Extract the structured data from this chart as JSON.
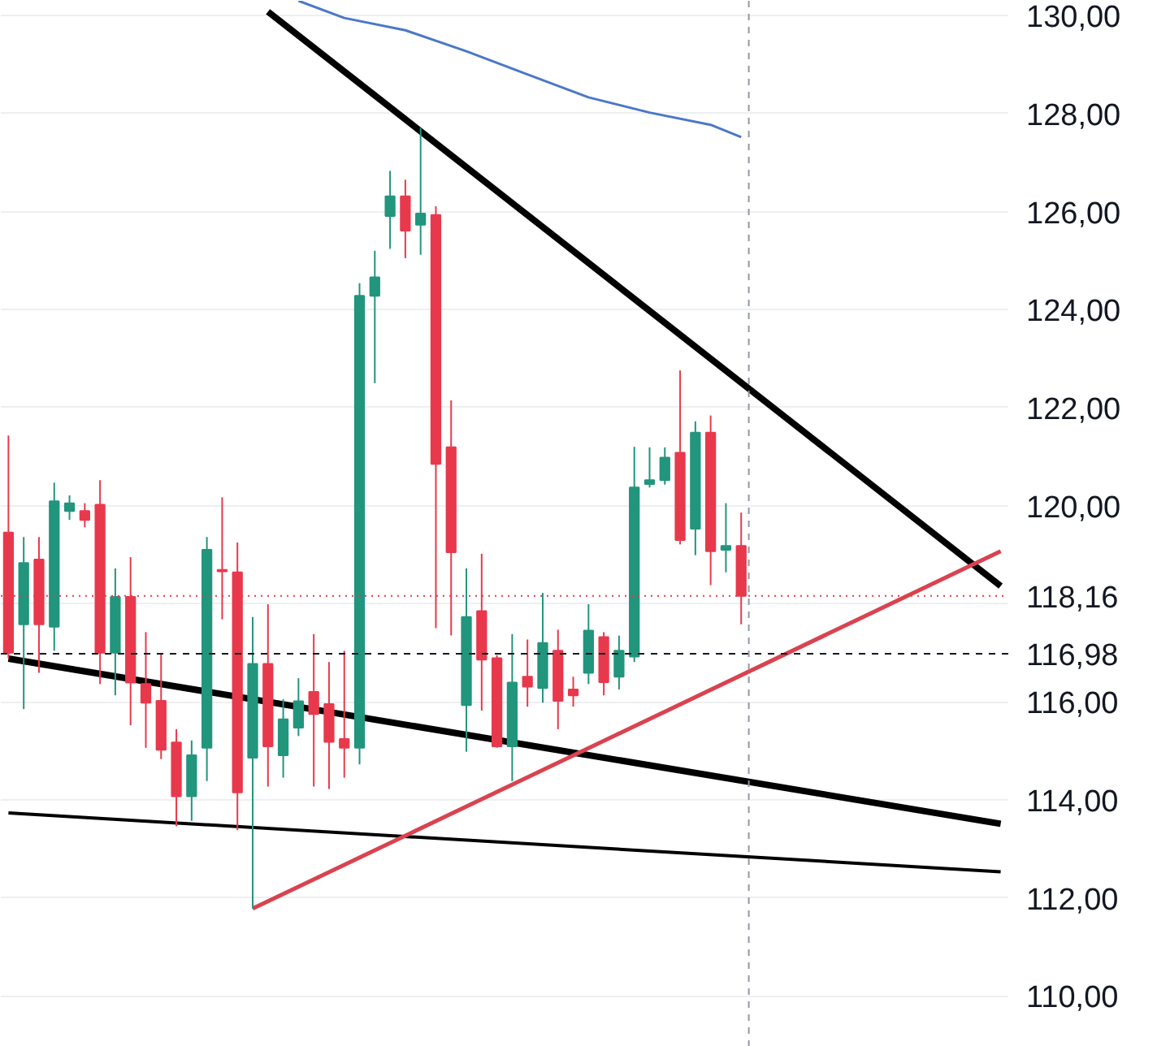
{
  "chart_data": {
    "type": "candlestick",
    "categories": [
      null,
      null,
      null,
      null,
      null,
      null,
      null,
      null,
      null,
      null,
      null,
      null,
      null,
      null,
      null,
      null,
      null,
      null,
      null,
      null,
      null,
      null,
      null,
      null,
      null,
      null,
      null,
      null,
      null,
      null,
      null,
      null,
      null,
      null,
      null,
      null,
      null,
      null,
      null,
      null,
      null,
      null,
      null,
      null,
      null,
      null,
      null,
      null,
      null,
      null,
      null,
      null,
      null,
      null,
      null,
      null,
      null,
      null,
      null,
      null,
      null,
      null,
      null,
      null,
      null,
      null
    ],
    "ohlc": [
      [
        119.45,
        121.43,
        116.89,
        117.0
      ],
      [
        117.58,
        119.36,
        115.85,
        118.83
      ],
      [
        118.9,
        119.36,
        116.59,
        117.58
      ],
      [
        117.53,
        120.47,
        117.04,
        120.09
      ],
      [
        119.89,
        120.21,
        119.71,
        120.05
      ],
      [
        119.89,
        120.05,
        119.56,
        119.71
      ],
      [
        120.02,
        120.52,
        116.36,
        117.0
      ],
      [
        117.0,
        118.72,
        116.13,
        118.14
      ],
      [
        118.14,
        118.95,
        115.52,
        116.39
      ],
      [
        116.36,
        117.42,
        115.06,
        115.98
      ],
      [
        116.02,
        116.97,
        114.83,
        115.02
      ],
      [
        115.17,
        115.44,
        113.46,
        114.07
      ],
      [
        114.07,
        115.21,
        113.57,
        114.91
      ],
      [
        115.06,
        119.36,
        114.38,
        119.1
      ],
      [
        118.69,
        120.17,
        117.68,
        118.66
      ],
      [
        118.64,
        119.25,
        113.38,
        114.15
      ],
      [
        114.86,
        117.73,
        111.78,
        116.77
      ],
      [
        116.77,
        117.99,
        114.27,
        115.09
      ],
      [
        114.91,
        116.05,
        114.45,
        115.64
      ],
      [
        115.47,
        116.48,
        115.3,
        116.01
      ],
      [
        116.2,
        117.38,
        114.27,
        115.75
      ],
      [
        115.95,
        116.81,
        114.22,
        115.18
      ],
      [
        115.24,
        117.04,
        114.45,
        115.06
      ],
      [
        115.06,
        124.54,
        114.72,
        124.28
      ],
      [
        124.28,
        125.2,
        122.5,
        124.66
      ],
      [
        125.91,
        126.83,
        125.24,
        126.31
      ],
      [
        126.31,
        126.65,
        125.05,
        125.61
      ],
      [
        125.73,
        127.71,
        125.12,
        125.96
      ],
      [
        125.93,
        126.11,
        117.5,
        120.85
      ],
      [
        121.19,
        122.15,
        117.35,
        119.05
      ],
      [
        115.93,
        118.72,
        114.98,
        117.73
      ],
      [
        117.85,
        119.02,
        115.82,
        116.86
      ],
      [
        116.89,
        116.95,
        115.06,
        115.09
      ],
      [
        115.09,
        117.38,
        114.38,
        116.39
      ],
      [
        116.51,
        117.27,
        115.9,
        116.31
      ],
      [
        116.28,
        118.22,
        115.98,
        117.2
      ],
      [
        117.04,
        117.47,
        115.44,
        116.02
      ],
      [
        116.25,
        116.51,
        115.9,
        116.13
      ],
      [
        116.59,
        117.99,
        116.36,
        117.45
      ],
      [
        117.32,
        117.42,
        116.13,
        116.4
      ],
      [
        116.51,
        117.35,
        116.25,
        117.04
      ],
      [
        116.92,
        121.2,
        116.81,
        120.37
      ],
      [
        120.44,
        121.19,
        120.37,
        120.52
      ],
      [
        120.52,
        121.19,
        120.43,
        120.98
      ],
      [
        121.08,
        122.76,
        119.21,
        119.3
      ],
      [
        119.53,
        121.72,
        118.99,
        121.49
      ],
      [
        121.49,
        121.84,
        118.38,
        119.07
      ],
      [
        119.1,
        120.05,
        118.64,
        119.18
      ],
      [
        119.18,
        119.86,
        117.58,
        118.16
      ],
      null,
      null,
      null,
      null,
      null,
      null,
      null,
      null,
      null,
      null,
      null,
      null,
      null,
      null,
      null,
      null,
      null
    ],
    "colors": [
      "#e8394c",
      "#22957d",
      "#e8394c",
      "#22957d",
      "#22957d",
      "#e8394c",
      "#e8394c",
      "#22957d",
      "#e8394c",
      "#e8394c",
      "#e8394c",
      "#e8394c",
      "#22957d",
      "#22957d",
      "#e8394c",
      "#e8394c",
      "#22957d",
      "#e8394c",
      "#22957d",
      "#22957d",
      "#e8394c",
      "#e8394c",
      "#e8394c",
      "#22957d",
      "#22957d",
      "#22957d",
      "#e8394c",
      "#22957d",
      "#e8394c",
      "#e8394c",
      "#22957d",
      "#e8394c",
      "#e8394c",
      "#22957d",
      "#e8394c",
      "#22957d",
      "#e8394c",
      "#e8394c",
      "#22957d",
      "#e8394c",
      "#22957d",
      "#22957d",
      "#22957d",
      "#22957d",
      "#e8394c",
      "#22957d",
      "#e8394c",
      "#22957d",
      "#e8394c",
      null,
      null,
      null,
      null,
      null,
      null,
      null,
      null,
      null,
      null,
      null,
      null,
      null,
      null,
      null,
      null,
      null
    ],
    "series": [
      {
        "type": "line",
        "color": "#000000",
        "values": [
          null,
          null,
          null,
          null,
          null,
          null,
          null,
          null,
          null,
          null,
          null,
          null,
          null,
          null,
          null,
          null,
          null,
          130.08,
          null,
          null,
          null,
          null,
          null,
          null,
          null,
          null,
          null,
          null,
          null,
          null,
          null,
          null,
          null,
          null,
          null,
          null,
          null,
          null,
          null,
          null,
          null,
          null,
          null,
          null,
          null,
          null,
          null,
          null,
          null,
          null,
          null,
          null,
          null,
          null,
          null,
          null,
          null,
          null,
          null,
          null,
          null,
          null,
          null,
          null,
          null,
          118.36
        ]
      },
      {
        "type": "line",
        "color": "#000000",
        "values": [
          116.88,
          null,
          null,
          null,
          null,
          null,
          null,
          null,
          null,
          null,
          null,
          null,
          null,
          null,
          null,
          null,
          null,
          null,
          null,
          null,
          null,
          null,
          null,
          null,
          null,
          null,
          null,
          null,
          null,
          null,
          null,
          null,
          null,
          null,
          null,
          null,
          null,
          null,
          null,
          null,
          null,
          null,
          null,
          null,
          null,
          null,
          null,
          null,
          null,
          null,
          null,
          null,
          null,
          null,
          null,
          null,
          null,
          null,
          null,
          null,
          null,
          null,
          null,
          null,
          null,
          113.51
        ]
      },
      {
        "type": "line",
        "color": "#000000",
        "values": [
          113.73,
          null,
          null,
          null,
          null,
          null,
          null,
          null,
          null,
          null,
          null,
          null,
          null,
          null,
          null,
          null,
          null,
          null,
          null,
          null,
          null,
          null,
          null,
          null,
          null,
          null,
          null,
          null,
          null,
          null,
          null,
          null,
          null,
          null,
          null,
          null,
          null,
          null,
          null,
          null,
          null,
          null,
          null,
          null,
          null,
          null,
          null,
          null,
          null,
          null,
          null,
          null,
          null,
          null,
          null,
          null,
          null,
          null,
          null,
          null,
          null,
          null,
          null,
          null,
          null,
          112.53
        ]
      },
      {
        "type": "line",
        "color": "#d9434f",
        "values": [
          null,
          null,
          null,
          null,
          null,
          null,
          null,
          null,
          null,
          null,
          null,
          null,
          null,
          null,
          null,
          null,
          111.78,
          null,
          null,
          null,
          null,
          null,
          null,
          null,
          null,
          null,
          null,
          null,
          null,
          null,
          null,
          null,
          null,
          null,
          null,
          null,
          null,
          null,
          null,
          null,
          null,
          null,
          null,
          null,
          null,
          null,
          null,
          null,
          null,
          null,
          null,
          null,
          null,
          null,
          null,
          null,
          null,
          null,
          null,
          null,
          null,
          null,
          null,
          null,
          null,
          119.07
        ]
      },
      {
        "type": "line",
        "color": "#4a78c8",
        "values": [
          null,
          null,
          null,
          null,
          null,
          null,
          null,
          null,
          null,
          null,
          null,
          null,
          null,
          null,
          null,
          null,
          null,
          null,
          null,
          130.3,
          null,
          null,
          129.95,
          null,
          null,
          null,
          129.7,
          null,
          null,
          null,
          129.27,
          null,
          null,
          null,
          128.8,
          null,
          null,
          null,
          128.33,
          null,
          null,
          null,
          128.02,
          null,
          null,
          null,
          127.77,
          null,
          127.52,
          null,
          null,
          null,
          null,
          null,
          null,
          null,
          null,
          null,
          null,
          null,
          null,
          null,
          null,
          null,
          null,
          null
        ]
      }
    ],
    "ref_lines": [
      {
        "axis": "y",
        "value": 118.16,
        "label": "118,16",
        "color": "#e8394c",
        "line_style": "dotted"
      },
      {
        "axis": "y",
        "value": 116.98,
        "label": "116,98",
        "color": "#131722",
        "line_style": "dashed"
      }
    ],
    "ylim": [
      108.96,
      130.3
    ],
    "yticks": [
      {
        "value": 110,
        "label": "110,00"
      },
      {
        "value": 112,
        "label": "112,00"
      },
      {
        "value": 114,
        "label": "114,00"
      },
      {
        "value": 116,
        "label": "116,00"
      },
      {
        "value": 118,
        "label": null
      },
      {
        "value": 120,
        "label": "120,00"
      },
      {
        "value": 122,
        "label": "122,00"
      },
      {
        "value": 124,
        "label": "124,00"
      },
      {
        "value": 126,
        "label": "126,00"
      },
      {
        "value": 128,
        "label": "128,00"
      },
      {
        "value": 130,
        "label": "130,00"
      }
    ],
    "tick_labels": "y",
    "grid": "y"
  }
}
